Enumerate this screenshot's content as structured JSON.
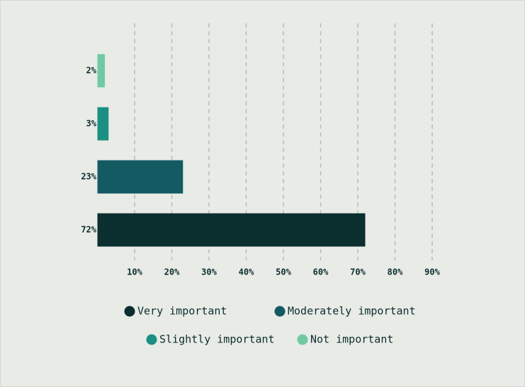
{
  "chart_data": {
    "type": "hbar",
    "series": [
      {
        "name": "Very important",
        "color": "#0b2e2f",
        "values": [
          72
        ],
        "value_labels": [
          "72%"
        ]
      },
      {
        "name": "Moderately important",
        "color": "#135a63",
        "values": [
          23
        ],
        "value_labels": [
          "23%"
        ]
      },
      {
        "name": "Slightly important",
        "color": "#1a8f82",
        "values": [
          3
        ],
        "value_labels": [
          "3%"
        ]
      },
      {
        "name": "Not important",
        "color": "#6fcaa3",
        "values": [
          2
        ],
        "value_labels": [
          "2%"
        ]
      }
    ],
    "xlim": [
      0,
      90
    ],
    "xticks": [
      {
        "value": 10,
        "label": "10%"
      },
      {
        "value": 20,
        "label": "20%"
      },
      {
        "value": 30,
        "label": "30%"
      },
      {
        "value": 40,
        "label": "40%"
      },
      {
        "value": 50,
        "label": "50%"
      },
      {
        "value": 60,
        "label": "60%"
      },
      {
        "value": 70,
        "label": "70%"
      },
      {
        "value": 80,
        "label": "80%"
      },
      {
        "value": 90,
        "label": "90%"
      }
    ],
    "grid": true
  }
}
